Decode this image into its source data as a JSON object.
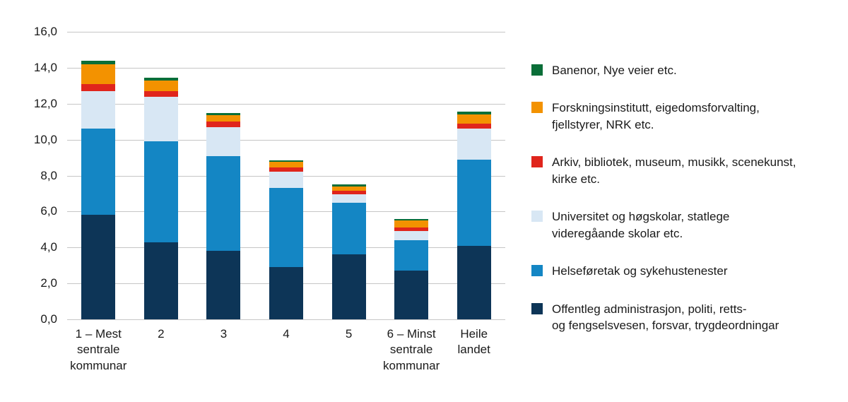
{
  "chart_data": {
    "type": "bar",
    "stacked": true,
    "title": "",
    "xlabel": "",
    "ylabel": "",
    "ylim": [
      0,
      16
    ],
    "grid": true,
    "legend_position": "right",
    "yticks": [
      {
        "value": 0,
        "label": "0,0"
      },
      {
        "value": 2,
        "label": "2,0"
      },
      {
        "value": 4,
        "label": "4,0"
      },
      {
        "value": 6,
        "label": "6,0"
      },
      {
        "value": 8,
        "label": "8,0"
      },
      {
        "value": 10,
        "label": "10,0"
      },
      {
        "value": 12,
        "label": "12,0"
      },
      {
        "value": 14,
        "label": "14,0"
      },
      {
        "value": 16,
        "label": "16,0"
      }
    ],
    "categories": [
      "1 – Mest\nsentrale\nkommunar",
      "2",
      "3",
      "4",
      "5",
      "6 – Minst\nsentrale\nkommunar",
      "Heile\nlandet"
    ],
    "series": [
      {
        "name": "Offentleg administrasjon, politi, retts- og fengselsvesen, forsvar, trygdeordningar",
        "legend_label": "Offentleg administrasjon, politi, retts-\nog fengselsvesen, forsvar, trygdeordningar",
        "color": "#0d3557",
        "values": [
          5.8,
          4.3,
          3.8,
          2.9,
          3.6,
          2.7,
          4.1
        ]
      },
      {
        "name": "Helseføretak og sykehustenester",
        "legend_label": "Helseføretak og sykehustenester",
        "color": "#1486c4",
        "values": [
          4.8,
          5.6,
          5.3,
          4.4,
          2.9,
          1.7,
          4.8
        ]
      },
      {
        "name": "Universitet og høgskolar, statlege videregåande skolar etc.",
        "legend_label": "Universitet og høgskolar, statlege\nvideregåande skolar etc.",
        "color": "#d8e7f4",
        "values": [
          2.1,
          2.5,
          1.6,
          0.9,
          0.45,
          0.5,
          1.7
        ]
      },
      {
        "name": "Arkiv, bibliotek, museum, musikk, scenekunst, kirke etc.",
        "legend_label": "Arkiv, bibliotek, museum, musikk, scenekunst,\nkirke etc.",
        "color": "#e0251c",
        "values": [
          0.4,
          0.3,
          0.3,
          0.25,
          0.2,
          0.2,
          0.3
        ]
      },
      {
        "name": "Forskningsinstitutt, eigedomsforvalting, fjellstyrer, NRK etc.",
        "legend_label": "Forskningsinstitutt, eigedomsforvalting,\nfjellstyrer, NRK etc.",
        "color": "#f39200",
        "values": [
          1.1,
          0.6,
          0.35,
          0.3,
          0.25,
          0.4,
          0.5
        ]
      },
      {
        "name": "Banenor, Nye veier etc.",
        "legend_label": "Banenor, Nye veier etc.",
        "color": "#0a6e38",
        "values": [
          0.2,
          0.15,
          0.15,
          0.1,
          0.1,
          0.1,
          0.15
        ]
      }
    ]
  }
}
